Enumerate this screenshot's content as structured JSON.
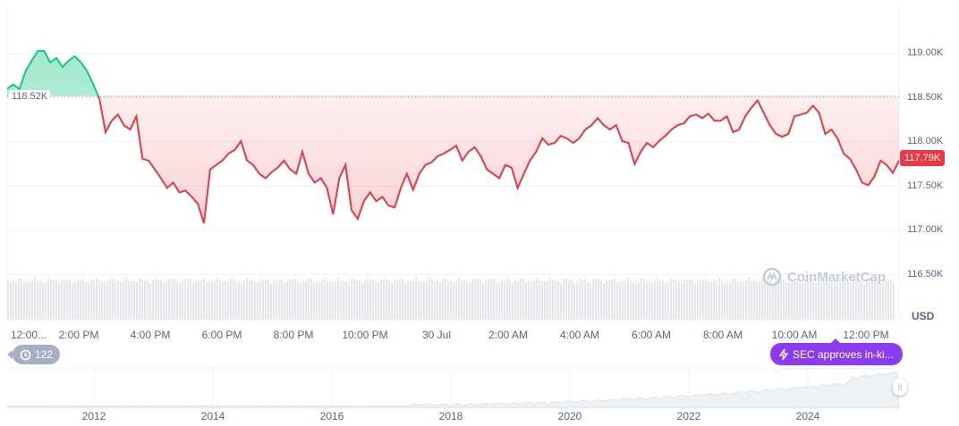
{
  "chart_data": {
    "type": "line",
    "currency": "USD",
    "y_ticks": [
      "119.00K",
      "118.50K",
      "118.00K",
      "117.50K",
      "117.00K",
      "116.50K"
    ],
    "ylim_k": [
      116.4,
      119.5
    ],
    "x_ticks": [
      "12:00...",
      "2:00 PM",
      "4:00 PM",
      "6:00 PM",
      "8:00 PM",
      "10:00 PM",
      "30 Jul",
      "2:00 AM",
      "4:00 AM",
      "6:00 AM",
      "8:00 AM",
      "10:00 AM",
      "12:00 PM"
    ],
    "baseline_k": 118.52,
    "baseline_label": "118.52K",
    "current_price_label": "117.79K",
    "colors": {
      "up": "#16c784",
      "down": "#ea3943",
      "accent": "#8c3cf0"
    },
    "grid": true,
    "values_k": [
      118.6,
      118.65,
      118.6,
      118.8,
      118.92,
      119.03,
      119.03,
      118.9,
      118.95,
      118.85,
      118.92,
      118.97,
      118.9,
      118.8,
      118.65,
      118.49,
      118.11,
      118.24,
      118.31,
      118.19,
      118.14,
      118.29,
      117.81,
      117.79,
      117.69,
      117.59,
      117.48,
      117.54,
      117.43,
      117.45,
      117.38,
      117.3,
      117.08,
      117.69,
      117.74,
      117.79,
      117.87,
      117.91,
      118.01,
      117.79,
      117.74,
      117.64,
      117.59,
      117.66,
      117.71,
      117.79,
      117.69,
      117.64,
      117.89,
      117.64,
      117.54,
      117.59,
      117.48,
      117.18,
      117.59,
      117.74,
      117.23,
      117.13,
      117.33,
      117.43,
      117.33,
      117.38,
      117.28,
      117.26,
      117.48,
      117.64,
      117.46,
      117.64,
      117.74,
      117.77,
      117.84,
      117.87,
      117.91,
      117.96,
      117.79,
      117.89,
      117.94,
      117.84,
      117.69,
      117.64,
      117.59,
      117.74,
      117.71,
      117.48,
      117.64,
      117.79,
      117.89,
      118.04,
      117.97,
      117.99,
      118.07,
      118.04,
      117.99,
      118.04,
      118.14,
      118.19,
      118.27,
      118.19,
      118.14,
      118.19,
      118.01,
      117.99,
      117.75,
      117.89,
      117.99,
      117.94,
      118.01,
      118.07,
      118.14,
      118.19,
      118.21,
      118.29,
      118.31,
      118.27,
      118.32,
      118.24,
      118.24,
      118.29,
      118.11,
      118.14,
      118.29,
      118.39,
      118.47,
      118.33,
      118.19,
      118.09,
      118.06,
      118.09,
      118.29,
      118.31,
      118.33,
      118.41,
      118.33,
      118.09,
      118.14,
      118.04,
      117.87,
      117.81,
      117.69,
      117.54,
      117.51,
      117.61,
      117.79,
      117.74,
      117.65,
      117.79
    ]
  },
  "navigator": {
    "years": [
      "2012",
      "2014",
      "2016",
      "2018",
      "2020",
      "2022",
      "2024"
    ]
  },
  "history_badge": {
    "count": "122",
    "icon": "history-icon"
  },
  "news": {
    "label": "SEC approves in-ki...",
    "icon": "lightning-icon"
  },
  "watermark": "CoinMarketCap",
  "currency_label": "USD"
}
